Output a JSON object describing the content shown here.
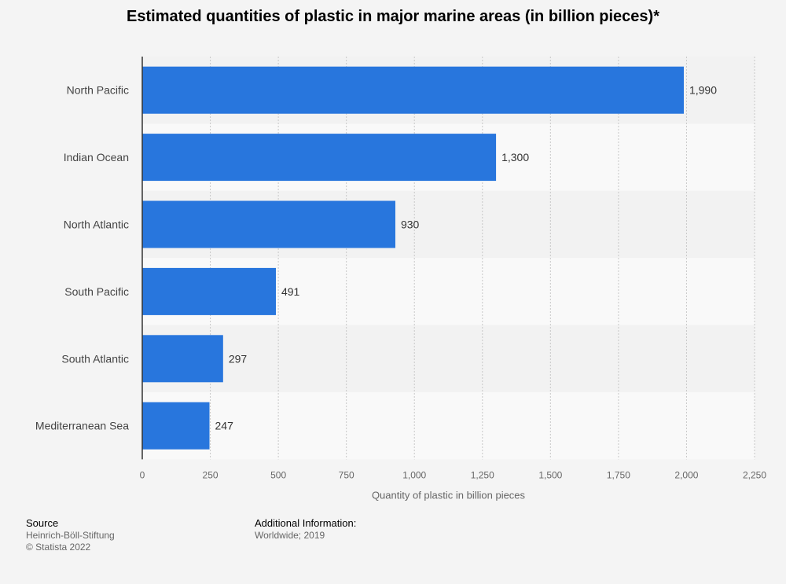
{
  "chart_data": {
    "type": "bar",
    "orientation": "horizontal",
    "title": "Estimated quantities of plastic in major marine areas (in billion pieces)*",
    "categories": [
      "North Pacific",
      "Indian Ocean",
      "North Atlantic",
      "South Pacific",
      "South Atlantic",
      "Mediterranean Sea"
    ],
    "values": [
      1990,
      1300,
      930,
      491,
      297,
      247
    ],
    "data_labels": [
      "1,990",
      "1,300",
      "930",
      "491",
      "297",
      "247"
    ],
    "xlabel": "Quantity of plastic in billion pieces",
    "ylabel": "",
    "xlim": [
      0,
      2250
    ],
    "ticks": [
      0,
      250,
      500,
      750,
      1000,
      1250,
      1500,
      1750,
      2000,
      2250
    ],
    "tick_labels": [
      "0",
      "250",
      "500",
      "750",
      "1,000",
      "1,250",
      "1,500",
      "1,750",
      "2,000",
      "2,250"
    ],
    "grid": true,
    "legend": "none"
  },
  "colors": {
    "bar": "#2876dd",
    "background": "#f4f4f4",
    "band_dark": "#f2f2f2",
    "band_light": "#f9f9f9"
  },
  "footer": {
    "source_heading": "Source",
    "source_lines": [
      "Heinrich-Böll-Stiftung",
      "© Statista 2022"
    ],
    "info_heading": "Additional Information:",
    "info_lines": [
      "Worldwide; 2019"
    ]
  }
}
